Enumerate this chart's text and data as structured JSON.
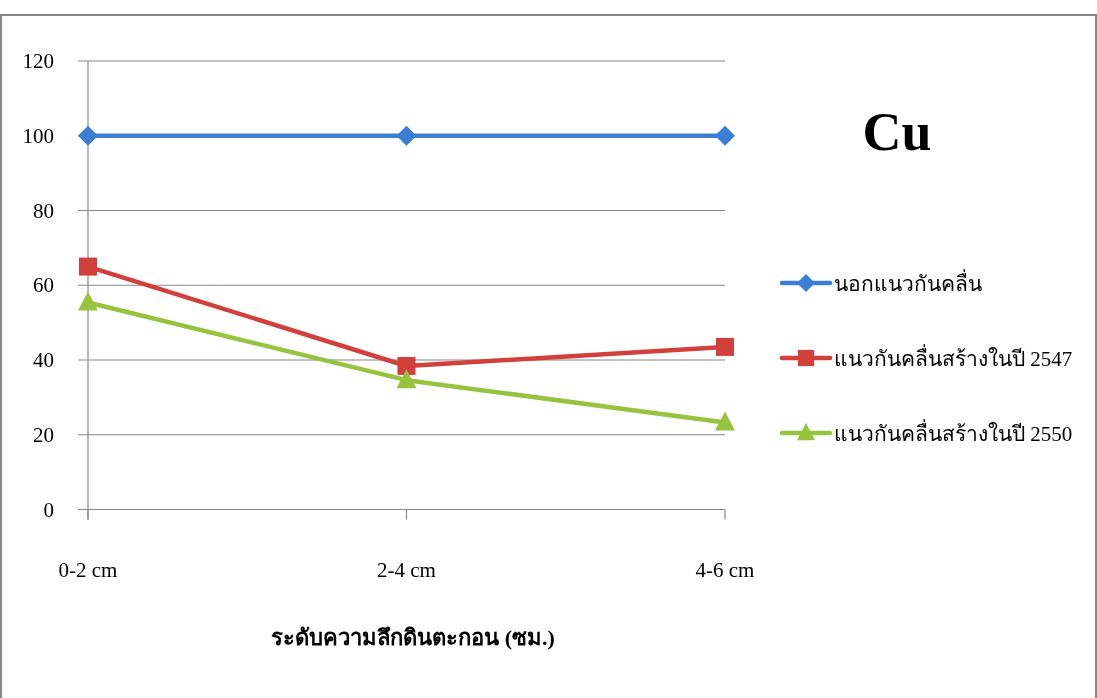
{
  "chart_data": {
    "type": "line",
    "title": "Cu",
    "xlabel": "ระดับความลึกดินตะกอน (ซม.)",
    "categories": [
      "0-2 cm",
      "2-4 cm",
      "4-6 cm"
    ],
    "series": [
      {
        "name": "นอกแนวกันคลื่น",
        "color": "#3a7fd5",
        "values": [
          100,
          100,
          100
        ],
        "marker": "diamond"
      },
      {
        "name": "แนวกันคลื่นสร้างในปี 2547",
        "color": "#d2403c",
        "values": [
          65,
          38.4,
          43.5
        ],
        "marker": "square"
      },
      {
        "name": "แนวกันคลื่นสร้างในปี 2550",
        "color": "#98c33f",
        "values": [
          55.4,
          34.6,
          23.3
        ],
        "marker": "triangle"
      }
    ],
    "ylim": [
      0,
      120
    ],
    "yticks": [
      0,
      20,
      40,
      60,
      80,
      100,
      120
    ],
    "grid": "y",
    "legend": "right",
    "line_style": "solid"
  }
}
